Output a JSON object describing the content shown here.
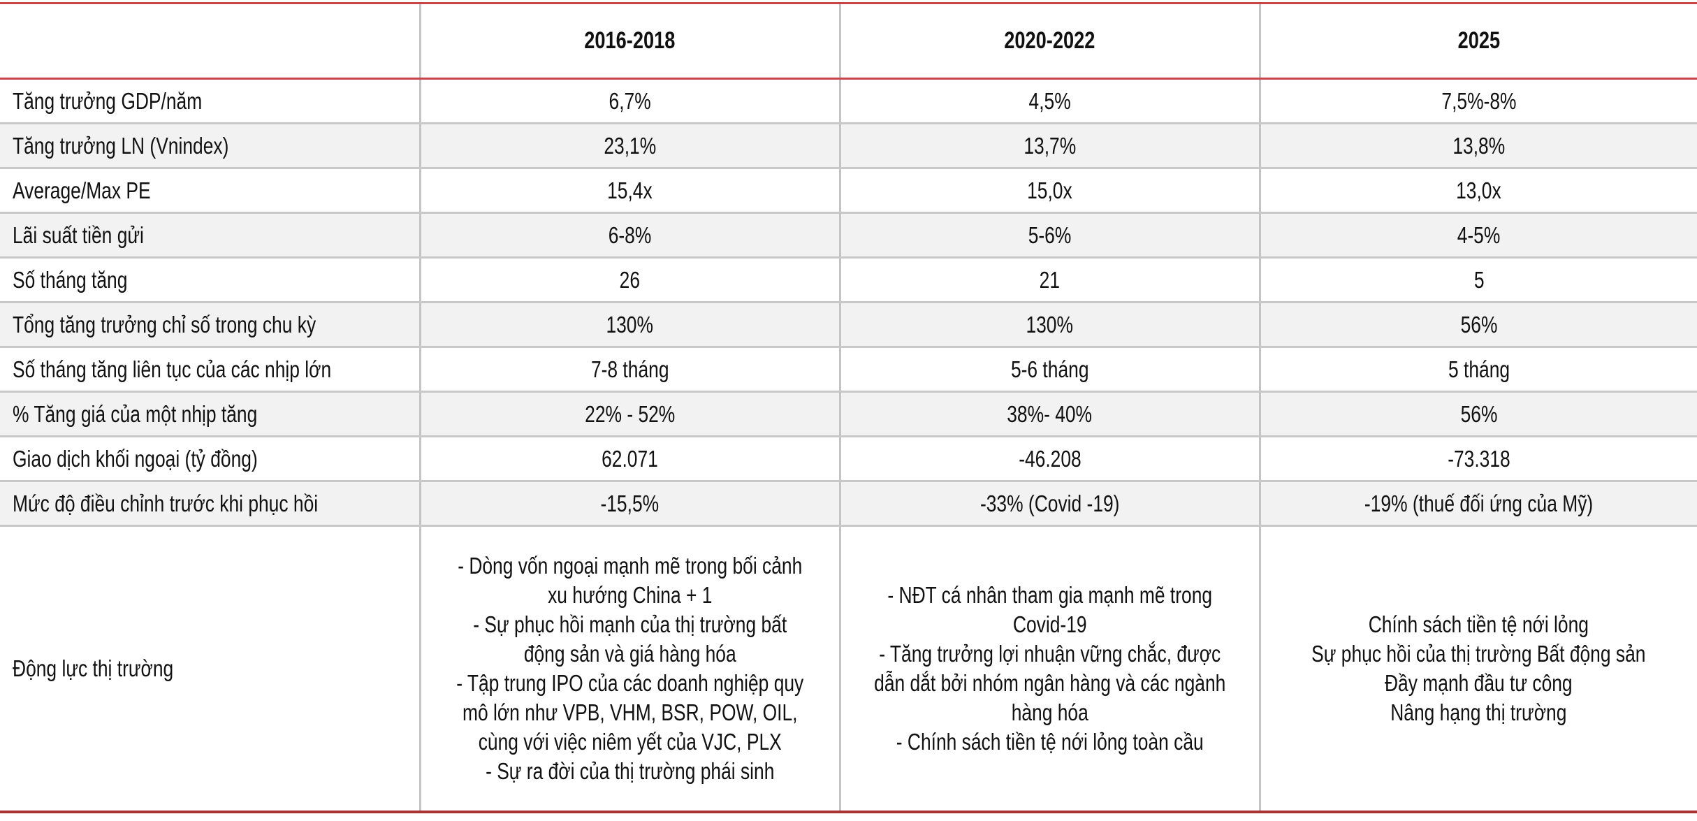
{
  "table": {
    "header": {
      "corner": "",
      "columns": [
        "2016-2018",
        "2020-2022",
        "2025"
      ]
    },
    "rows": [
      {
        "label": "Tăng trưởng GDP/năm",
        "values": [
          "6,7%",
          "4,5%",
          "7,5%-8%"
        ]
      },
      {
        "label": "Tăng trưởng LN (Vnindex)",
        "values": [
          "23,1%",
          "13,7%",
          "13,8%"
        ]
      },
      {
        "label": "Average/Max PE",
        "values": [
          "15,4x",
          "15,0x",
          "13,0x"
        ]
      },
      {
        "label": "Lãi suất tiền gửi",
        "values": [
          "6-8%",
          "5-6%",
          "4-5%"
        ]
      },
      {
        "label": "Số tháng tăng",
        "values": [
          "26",
          "21",
          "5"
        ]
      },
      {
        "label": "Tổng tăng trưởng chỉ số trong chu kỳ",
        "values": [
          "130%",
          "130%",
          "56%"
        ]
      },
      {
        "label": "Số tháng tăng liên tục của các nhịp lớn",
        "values": [
          "7-8 tháng",
          "5-6 tháng",
          "5 tháng"
        ]
      },
      {
        "label": "% Tăng giá của một nhịp tăng",
        "values": [
          "22% - 52%",
          "38%- 40%",
          "56%"
        ]
      },
      {
        "label": "Giao dịch khối ngoại (tỷ đồng)",
        "values": [
          "62.071",
          "-46.208",
          "-73.318"
        ]
      },
      {
        "label": "Mức độ điều chỉnh trước khi phục hồi",
        "values": [
          "-15,5%",
          "-33% (Covid -19)",
          "-19% (thuế đối ứng của Mỹ)"
        ]
      }
    ],
    "drivers": {
      "label": "Động lực thị trường",
      "values": [
        [
          "- Dòng vốn ngoại mạnh mẽ trong bối cảnh",
          "xu hướng China + 1",
          "- Sự phục hồi mạnh của thị trường bất",
          "động sản và giá hàng hóa",
          "- Tập trung IPO của các doanh nghiệp quy",
          "mô lớn như VPB, VHM, BSR, POW, OIL,",
          "cùng với việc niêm yết của VJC, PLX",
          "- Sự ra đời của thị trường phái sinh"
        ],
        [
          "- NĐT cá nhân tham gia mạnh mẽ trong",
          "Covid-19",
          "- Tăng trưởng lợi nhuận vững chắc, được",
          "dẫn dắt bởi nhóm ngân hàng và các ngành",
          "hàng hóa",
          "- Chính sách tiền tệ nới lỏng toàn cầu"
        ],
        [
          "Chính sách tiền tệ nới lỏng",
          "Sự phục hồi của thị trường Bất động sản",
          "Đầy mạnh đầu tư công",
          "Nâng hạng thị trường"
        ]
      ]
    }
  },
  "colors": {
    "header_border": "#c9444a",
    "bottom_border": "#a83232",
    "grid": "#c8c8c8",
    "alt_row": "#f2f2f2"
  }
}
